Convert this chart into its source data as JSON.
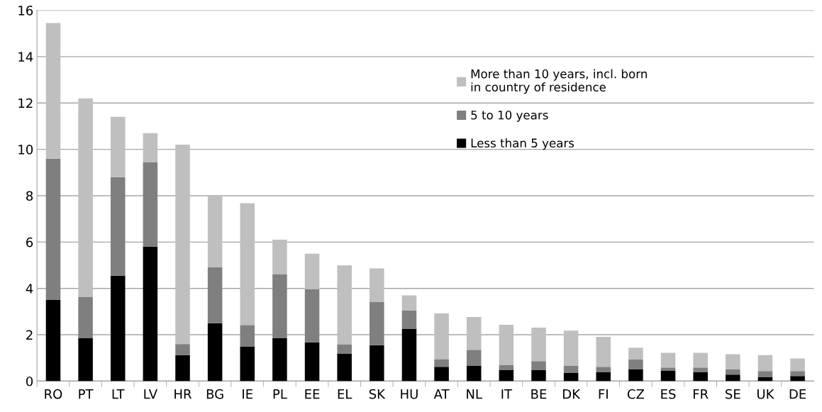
{
  "chart_data": {
    "type": "bar",
    "stacked": true,
    "categories": [
      "RO",
      "PT",
      "LT",
      "LV",
      "HR",
      "BG",
      "IE",
      "PL",
      "EE",
      "EL",
      "SK",
      "HU",
      "AT",
      "NL",
      "IT",
      "BE",
      "DK",
      "FI",
      "CZ",
      "ES",
      "FR",
      "SE",
      "UK",
      "DE"
    ],
    "series": [
      {
        "name": "Less than 5 years",
        "color": "#000000",
        "values": [
          3.5,
          1.85,
          4.55,
          5.8,
          1.12,
          2.5,
          1.5,
          1.85,
          1.67,
          1.19,
          1.55,
          2.26,
          0.62,
          0.67,
          0.47,
          0.47,
          0.35,
          0.38,
          0.52,
          0.46,
          0.38,
          0.28,
          0.18,
          0.22
        ]
      },
      {
        "name": "5 to 10 years",
        "color": "#7f7f7f",
        "values": [
          6.1,
          1.77,
          4.25,
          3.65,
          0.48,
          2.42,
          0.92,
          2.77,
          2.29,
          0.4,
          1.86,
          0.79,
          0.33,
          0.68,
          0.23,
          0.39,
          0.32,
          0.24,
          0.41,
          0.13,
          0.21,
          0.24,
          0.25,
          0.21
        ]
      },
      {
        "name": "More than 10 years, incl. born\nin country of residence",
        "color": "#bfbfbf",
        "values": [
          5.85,
          8.58,
          2.6,
          1.25,
          8.6,
          3.08,
          5.26,
          1.48,
          1.54,
          3.4,
          1.45,
          0.65,
          1.97,
          1.42,
          1.73,
          1.45,
          1.51,
          1.29,
          0.51,
          0.63,
          0.63,
          0.64,
          0.69,
          0.55
        ]
      }
    ],
    "ylim": [
      0,
      16
    ],
    "yticks": [
      0,
      2,
      4,
      6,
      8,
      10,
      12,
      14,
      16
    ],
    "grid": "y",
    "legend": "top right"
  }
}
